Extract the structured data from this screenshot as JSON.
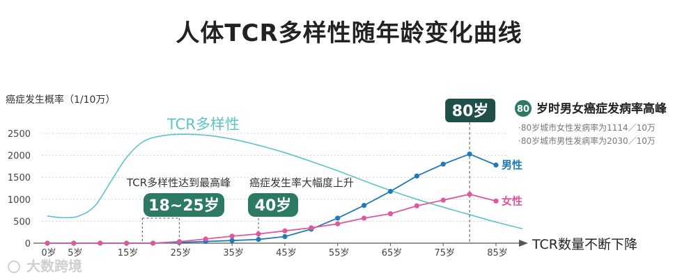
{
  "chart_data": {
    "type": "line",
    "title": "人体TCR多样性随年龄变化曲线",
    "ylabel": "癌症发生概率（1/10万）",
    "xlabel": "TCR数量不断下降",
    "ylim": [
      0,
      2500
    ],
    "yticks": [
      0,
      500,
      1000,
      1500,
      2000,
      2500
    ],
    "xticks": [
      0,
      5,
      15,
      25,
      35,
      45,
      55,
      65,
      75,
      85
    ],
    "xtick_labels": [
      "0岁",
      "5岁",
      "15岁",
      "25岁",
      "35岁",
      "45岁",
      "55岁",
      "65岁",
      "75岁",
      "85岁"
    ],
    "x": [
      0,
      5,
      10,
      15,
      20,
      25,
      30,
      35,
      40,
      45,
      50,
      55,
      60,
      65,
      70,
      75,
      80,
      85
    ],
    "series": [
      {
        "name": "男性",
        "color": "#1e7bb8",
        "values": [
          0,
          0,
          0,
          0,
          0,
          15,
          40,
          60,
          85,
          150,
          320,
          570,
          860,
          1180,
          1530,
          1800,
          2030,
          1780
        ]
      },
      {
        "name": "女性",
        "color": "#e0569f",
        "values": [
          0,
          0,
          0,
          0,
          0,
          35,
          95,
          160,
          210,
          280,
          350,
          440,
          570,
          670,
          850,
          980,
          1114,
          960
        ]
      }
    ],
    "tcr_curve": {
      "label": "TCR多样性",
      "color": "#5bc4c8",
      "x": [
        0,
        3,
        6,
        9,
        12,
        15,
        18,
        21,
        25,
        30,
        35,
        40,
        45,
        50,
        55,
        60,
        65,
        70,
        75,
        80,
        85,
        90
      ],
      "values": [
        620,
        580,
        620,
        850,
        1400,
        1950,
        2300,
        2430,
        2480,
        2460,
        2370,
        2230,
        2060,
        1860,
        1650,
        1420,
        1200,
        1000,
        820,
        650,
        480,
        330
      ]
    },
    "annotations": [
      {
        "text": "TCR多样性达到最高峰",
        "badge": "18~25岁",
        "from_age": 18,
        "to_age": 25
      },
      {
        "text": "癌症发生率大幅度上升",
        "badge": "40岁",
        "at_age": 40
      },
      {
        "badge": "80岁",
        "at_age": 80
      }
    ],
    "legend": {
      "badge": "80",
      "heading": "岁时男女癌症发病率高峰",
      "lines": [
        "·80岁城市女性发病率为1114／10万",
        "·80岁城市男性发病率为2030／10万"
      ]
    }
  },
  "watermark": "大数跨境",
  "colors": {
    "badge_green": "#2d7a64",
    "badge_dark": "#1f4f4a",
    "axis": "#555555",
    "grid": "#d0d0d0"
  }
}
